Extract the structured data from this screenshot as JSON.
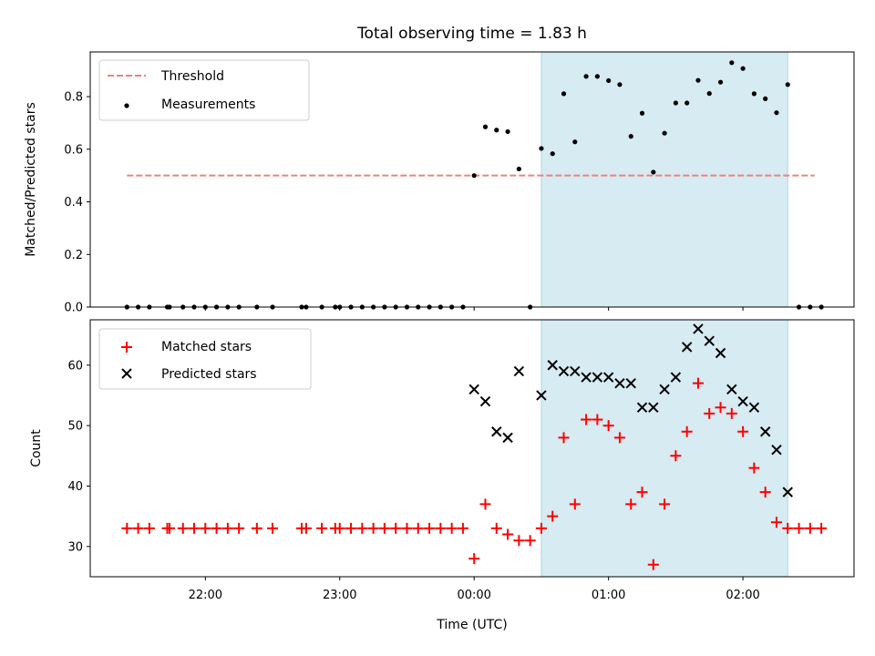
{
  "chart_data": {
    "title": "Total observing time = 1.83 h",
    "shaded_interval": {
      "start": "00:30",
      "end": "02:20"
    },
    "xticks": [
      "22:00",
      "23:00",
      "00:00",
      "01:00",
      "02:00"
    ],
    "xlabel": "Time (UTC)",
    "colors": {
      "threshold": "#f08080",
      "matched": "#ff0000",
      "predicted": "#000000",
      "measurement": "#000000",
      "shade": "#add8e6"
    },
    "panels": [
      {
        "type": "scatter",
        "ylabel": "Matched/Predicted stars",
        "ylim": [
          0,
          0.97
        ],
        "yticks": [
          "0.0",
          "0.2",
          "0.4",
          "0.6",
          "0.8"
        ],
        "legend_position": "upper-left",
        "series": [
          {
            "name": "Threshold",
            "style": "dashed-line",
            "x": [
              "21:25",
              "02:32"
            ],
            "y": [
              0.5,
              0.5
            ]
          },
          {
            "name": "Measurements",
            "style": "dot",
            "x": [
              "21:25",
              "21:30",
              "21:35",
              "21:43",
              "21:44",
              "21:50",
              "21:55",
              "22:00",
              "22:05",
              "22:10",
              "22:15",
              "22:23",
              "22:30",
              "22:43",
              "22:45",
              "22:52",
              "22:58",
              "23:00",
              "23:05",
              "23:10",
              "23:15",
              "23:20",
              "23:25",
              "23:30",
              "23:35",
              "23:40",
              "23:45",
              "23:50",
              "23:55",
              "00:00",
              "00:05",
              "00:10",
              "00:15",
              "00:20",
              "00:25",
              "00:30",
              "00:35",
              "00:40",
              "00:45",
              "00:50",
              "00:55",
              "01:00",
              "01:05",
              "01:10",
              "01:15",
              "01:20",
              "01:25",
              "01:30",
              "01:35",
              "01:40",
              "01:45",
              "01:50",
              "01:55",
              "02:00",
              "02:05",
              "02:10",
              "02:15",
              "02:20",
              "02:25",
              "02:30",
              "02:35"
            ],
            "y": [
              0,
              0,
              0,
              0,
              0,
              0,
              0,
              0,
              0,
              0,
              0,
              0,
              0,
              0,
              0,
              0,
              0,
              0,
              0,
              0,
              0,
              0,
              0,
              0,
              0,
              0,
              0,
              0,
              0,
              0.5,
              0.685,
              0.673,
              0.667,
              0.525,
              0,
              0.603,
              0.583,
              0.811,
              0.628,
              0.877,
              0.877,
              0.861,
              0.846,
              0.649,
              0.737,
              0.513,
              0.661,
              0.776,
              0.776,
              0.862,
              0.812,
              0.855,
              0.929,
              0.907,
              0.811,
              0.792,
              0.739,
              0.846,
              0,
              0,
              0
            ]
          }
        ]
      },
      {
        "type": "scatter",
        "ylabel": "Count",
        "ylim": [
          25,
          67.5
        ],
        "yticks": [
          "30",
          "40",
          "50",
          "60"
        ],
        "legend_position": "upper-left",
        "series": [
          {
            "name": "Matched stars",
            "marker": "plus",
            "x": [
              "21:25",
              "21:30",
              "21:35",
              "21:43",
              "21:44",
              "21:50",
              "21:55",
              "22:00",
              "22:05",
              "22:10",
              "22:15",
              "22:23",
              "22:30",
              "22:43",
              "22:45",
              "22:52",
              "22:58",
              "23:00",
              "23:05",
              "23:10",
              "23:15",
              "23:20",
              "23:25",
              "23:30",
              "23:35",
              "23:40",
              "23:45",
              "23:50",
              "23:55",
              "00:00",
              "00:05",
              "00:10",
              "00:15",
              "00:20",
              "00:25",
              "00:30",
              "00:35",
              "00:40",
              "00:45",
              "00:50",
              "00:55",
              "01:00",
              "01:05",
              "01:10",
              "01:15",
              "01:20",
              "01:25",
              "01:30",
              "01:35",
              "01:40",
              "01:45",
              "01:50",
              "01:55",
              "02:00",
              "02:05",
              "02:10",
              "02:15",
              "02:20",
              "02:25",
              "02:30",
              "02:35"
            ],
            "y": [
              33,
              33,
              33,
              33,
              33,
              33,
              33,
              33,
              33,
              33,
              33,
              33,
              33,
              33,
              33,
              33,
              33,
              33,
              33,
              33,
              33,
              33,
              33,
              33,
              33,
              33,
              33,
              33,
              33,
              28,
              37,
              33,
              32,
              31,
              31,
              33,
              35,
              48,
              37,
              51,
              51,
              50,
              48,
              37,
              39,
              27,
              37,
              45,
              49,
              57,
              52,
              53,
              52,
              49,
              43,
              39,
              34,
              33,
              33,
              33,
              33
            ]
          },
          {
            "name": "Predicted stars",
            "marker": "x",
            "x": [
              "00:00",
              "00:05",
              "00:10",
              "00:15",
              "00:20",
              "00:30",
              "00:35",
              "00:40",
              "00:45",
              "00:50",
              "00:55",
              "01:00",
              "01:05",
              "01:10",
              "01:15",
              "01:20",
              "01:25",
              "01:30",
              "01:35",
              "01:40",
              "01:45",
              "01:50",
              "01:55",
              "02:00",
              "02:05",
              "02:10",
              "02:15",
              "02:20"
            ],
            "y": [
              56,
              54,
              49,
              48,
              59,
              55,
              60,
              59,
              59,
              58,
              58,
              58,
              57,
              57,
              53,
              53,
              56,
              58,
              63,
              66,
              64,
              62,
              56,
              54,
              53,
              49,
              46,
              39
            ]
          }
        ]
      }
    ]
  }
}
